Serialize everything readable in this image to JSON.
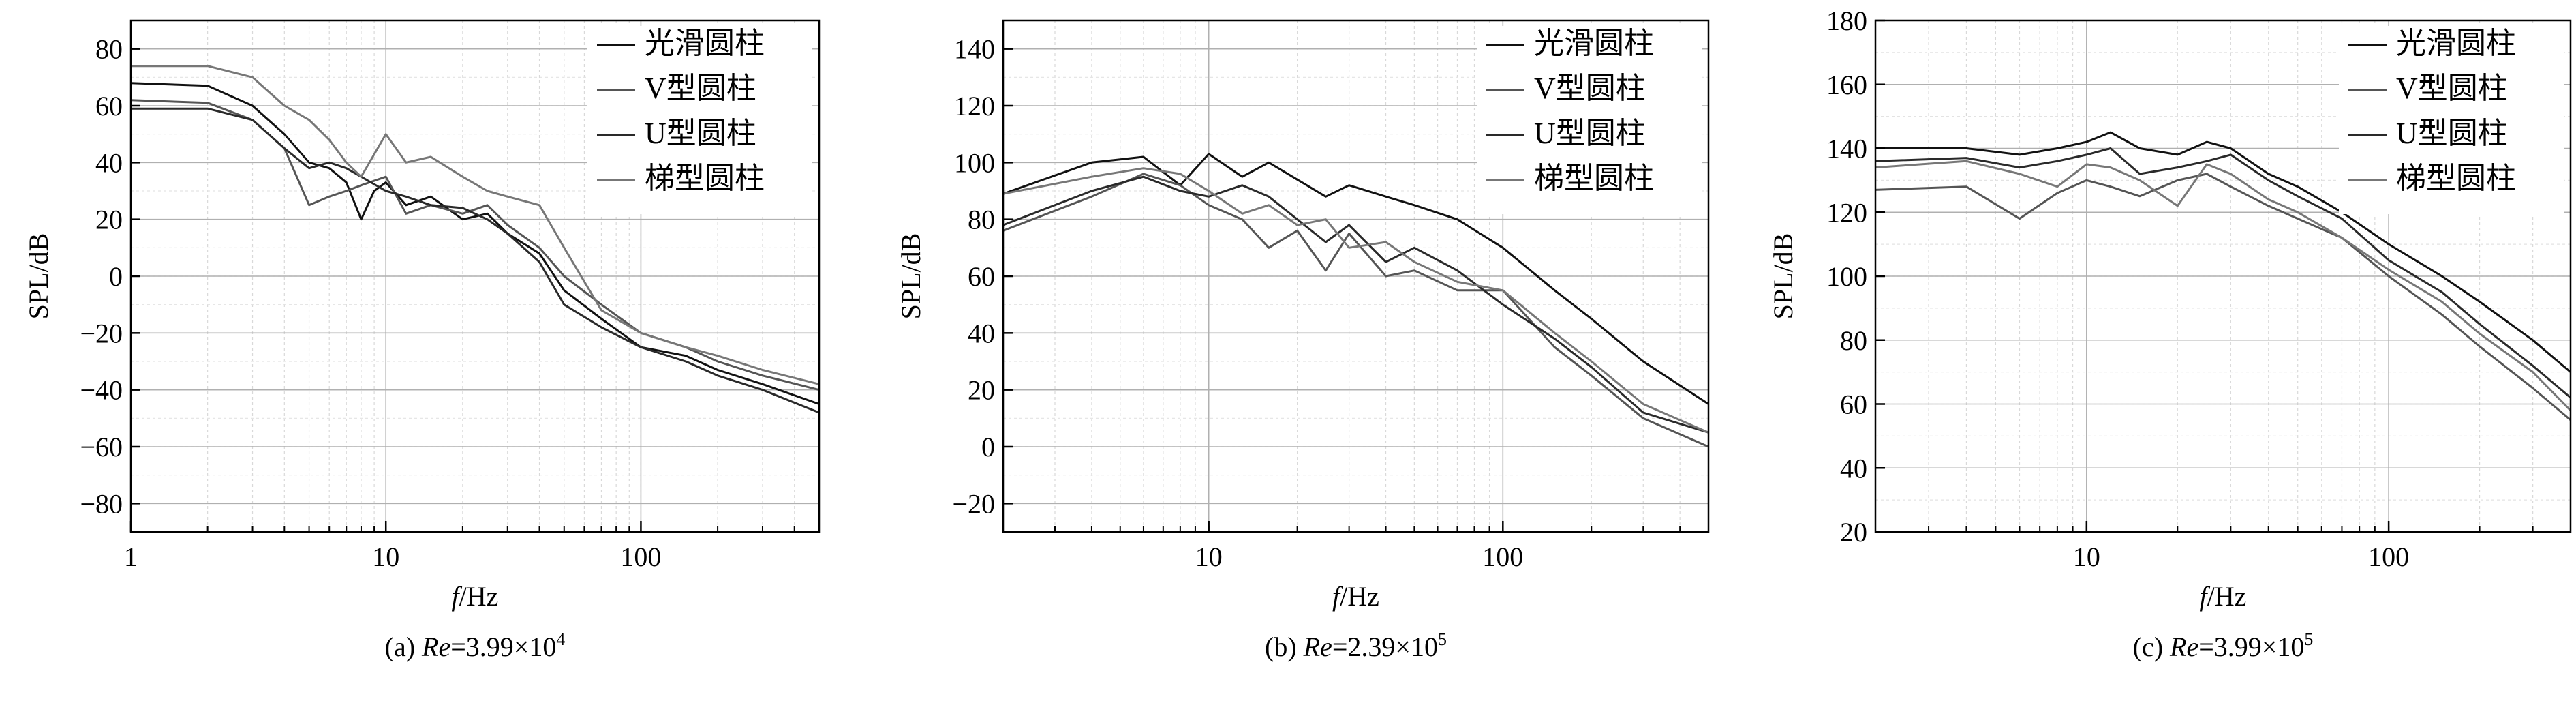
{
  "chart_data": [
    {
      "type": "line",
      "panel_id": "a",
      "caption": {
        "prefix": "(a) ",
        "re_symbol": "Re",
        "equals": "=3.99×10",
        "exponent": "4"
      },
      "xlabel": {
        "italic": "f",
        "rest": "/Hz"
      },
      "ylabel": "SPL/dB",
      "xscale": "log",
      "xlim": [
        1,
        500
      ],
      "ylim": [
        -90,
        90
      ],
      "y_ticks": [
        -80,
        -60,
        -40,
        -20,
        0,
        20,
        40,
        60,
        80
      ],
      "x_ticks": [
        1,
        10,
        100
      ],
      "x_tick_labels": [
        "1",
        "10",
        "100"
      ],
      "grid": true,
      "legend_position": "upper-right",
      "series": [
        {
          "name": "光滑圆柱",
          "color": "#111111",
          "values": [
            [
              1,
              68
            ],
            [
              2,
              67
            ],
            [
              3,
              60
            ],
            [
              4,
              50
            ],
            [
              5,
              40
            ],
            [
              6,
              38
            ],
            [
              7,
              33
            ],
            [
              8,
              20
            ],
            [
              9,
              30
            ],
            [
              10,
              33
            ],
            [
              12,
              25
            ],
            [
              15,
              28
            ],
            [
              20,
              20
            ],
            [
              25,
              22
            ],
            [
              30,
              15
            ],
            [
              40,
              8
            ],
            [
              50,
              -5
            ],
            [
              70,
              -15
            ],
            [
              100,
              -25
            ],
            [
              150,
              -28
            ],
            [
              200,
              -33
            ],
            [
              300,
              -38
            ],
            [
              500,
              -45
            ]
          ]
        },
        {
          "name": "V型圆柱",
          "color": "#555555",
          "values": [
            [
              1,
              62
            ],
            [
              2,
              61
            ],
            [
              3,
              55
            ],
            [
              4,
              45
            ],
            [
              5,
              25
            ],
            [
              6,
              28
            ],
            [
              7,
              30
            ],
            [
              8,
              32
            ],
            [
              10,
              35
            ],
            [
              12,
              22
            ],
            [
              15,
              25
            ],
            [
              20,
              22
            ],
            [
              25,
              25
            ],
            [
              30,
              18
            ],
            [
              40,
              10
            ],
            [
              50,
              0
            ],
            [
              70,
              -10
            ],
            [
              100,
              -20
            ],
            [
              150,
              -25
            ],
            [
              200,
              -30
            ],
            [
              300,
              -35
            ],
            [
              500,
              -40
            ]
          ]
        },
        {
          "name": "U型圆柱",
          "color": "#2a2a2a",
          "values": [
            [
              1,
              59
            ],
            [
              2,
              59
            ],
            [
              3,
              55
            ],
            [
              4,
              45
            ],
            [
              5,
              38
            ],
            [
              6,
              40
            ],
            [
              7,
              38
            ],
            [
              8,
              35
            ],
            [
              10,
              30
            ],
            [
              12,
              28
            ],
            [
              15,
              25
            ],
            [
              20,
              24
            ],
            [
              25,
              20
            ],
            [
              30,
              15
            ],
            [
              40,
              5
            ],
            [
              50,
              -10
            ],
            [
              70,
              -18
            ],
            [
              100,
              -25
            ],
            [
              150,
              -30
            ],
            [
              200,
              -35
            ],
            [
              300,
              -40
            ],
            [
              500,
              -48
            ]
          ]
        },
        {
          "name": "梯型圆柱",
          "color": "#777777",
          "values": [
            [
              1,
              74
            ],
            [
              2,
              74
            ],
            [
              3,
              70
            ],
            [
              4,
              60
            ],
            [
              5,
              55
            ],
            [
              6,
              48
            ],
            [
              7,
              40
            ],
            [
              8,
              35
            ],
            [
              10,
              50
            ],
            [
              12,
              40
            ],
            [
              15,
              42
            ],
            [
              20,
              35
            ],
            [
              25,
              30
            ],
            [
              30,
              28
            ],
            [
              40,
              25
            ],
            [
              50,
              10
            ],
            [
              70,
              -12
            ],
            [
              100,
              -20
            ],
            [
              150,
              -25
            ],
            [
              200,
              -28
            ],
            [
              300,
              -33
            ],
            [
              500,
              -38
            ]
          ]
        }
      ]
    },
    {
      "type": "line",
      "panel_id": "b",
      "caption": {
        "prefix": "(b) ",
        "re_symbol": "Re",
        "equals": "=2.39×10",
        "exponent": "5"
      },
      "xlabel": {
        "italic": "f",
        "rest": "/Hz"
      },
      "ylabel": "SPL/dB",
      "xscale": "log",
      "xlim": [
        2,
        500
      ],
      "ylim": [
        -30,
        150
      ],
      "y_ticks": [
        -20,
        0,
        20,
        40,
        60,
        80,
        100,
        120,
        140
      ],
      "x_ticks": [
        10,
        100
      ],
      "x_tick_labels": [
        "10",
        "100"
      ],
      "grid": true,
      "legend_position": "upper-right",
      "series": [
        {
          "name": "光滑圆柱",
          "color": "#111111",
          "values": [
            [
              2,
              89
            ],
            [
              4,
              100
            ],
            [
              6,
              102
            ],
            [
              8,
              92
            ],
            [
              10,
              103
            ],
            [
              13,
              95
            ],
            [
              16,
              100
            ],
            [
              20,
              94
            ],
            [
              25,
              88
            ],
            [
              30,
              92
            ],
            [
              40,
              88
            ],
            [
              50,
              85
            ],
            [
              70,
              80
            ],
            [
              100,
              70
            ],
            [
              150,
              55
            ],
            [
              200,
              45
            ],
            [
              300,
              30
            ],
            [
              500,
              15
            ]
          ]
        },
        {
          "name": "V型圆柱",
          "color": "#555555",
          "values": [
            [
              2,
              76
            ],
            [
              4,
              88
            ],
            [
              6,
              96
            ],
            [
              8,
              92
            ],
            [
              10,
              85
            ],
            [
              13,
              80
            ],
            [
              16,
              70
            ],
            [
              20,
              76
            ],
            [
              25,
              62
            ],
            [
              30,
              75
            ],
            [
              40,
              60
            ],
            [
              50,
              62
            ],
            [
              70,
              55
            ],
            [
              100,
              55
            ],
            [
              150,
              35
            ],
            [
              200,
              25
            ],
            [
              300,
              10
            ],
            [
              500,
              0
            ]
          ]
        },
        {
          "name": "U型圆柱",
          "color": "#2a2a2a",
          "values": [
            [
              2,
              78
            ],
            [
              4,
              90
            ],
            [
              6,
              95
            ],
            [
              8,
              90
            ],
            [
              10,
              88
            ],
            [
              13,
              92
            ],
            [
              16,
              88
            ],
            [
              20,
              80
            ],
            [
              25,
              72
            ],
            [
              30,
              78
            ],
            [
              40,
              65
            ],
            [
              50,
              70
            ],
            [
              70,
              62
            ],
            [
              100,
              50
            ],
            [
              150,
              38
            ],
            [
              200,
              28
            ],
            [
              300,
              12
            ],
            [
              500,
              5
            ]
          ]
        },
        {
          "name": "梯型圆柱",
          "color": "#777777",
          "values": [
            [
              2,
              89
            ],
            [
              4,
              95
            ],
            [
              6,
              98
            ],
            [
              8,
              96
            ],
            [
              10,
              90
            ],
            [
              13,
              82
            ],
            [
              16,
              85
            ],
            [
              20,
              78
            ],
            [
              25,
              80
            ],
            [
              30,
              70
            ],
            [
              40,
              72
            ],
            [
              50,
              65
            ],
            [
              70,
              58
            ],
            [
              100,
              55
            ],
            [
              150,
              40
            ],
            [
              200,
              30
            ],
            [
              300,
              15
            ],
            [
              500,
              5
            ]
          ]
        }
      ]
    },
    {
      "type": "line",
      "panel_id": "c",
      "caption": {
        "prefix": "(c) ",
        "re_symbol": "Re",
        "equals": "=3.99×10",
        "exponent": "5"
      },
      "xlabel": {
        "italic": "f",
        "rest": "/Hz"
      },
      "ylabel": "SPL/dB",
      "xscale": "log",
      "xlim": [
        2,
        400
      ],
      "ylim": [
        20,
        180
      ],
      "y_ticks": [
        20,
        40,
        60,
        80,
        100,
        120,
        140,
        160,
        180
      ],
      "x_ticks": [
        10,
        100
      ],
      "x_tick_labels": [
        "10",
        "100"
      ],
      "grid": true,
      "legend_position": "upper-right",
      "series": [
        {
          "name": "光滑圆柱",
          "color": "#111111",
          "values": [
            [
              2,
              140
            ],
            [
              4,
              140
            ],
            [
              6,
              138
            ],
            [
              8,
              140
            ],
            [
              10,
              142
            ],
            [
              12,
              145
            ],
            [
              15,
              140
            ],
            [
              20,
              138
            ],
            [
              25,
              142
            ],
            [
              30,
              140
            ],
            [
              40,
              132
            ],
            [
              50,
              128
            ],
            [
              70,
              120
            ],
            [
              100,
              110
            ],
            [
              150,
              100
            ],
            [
              200,
              92
            ],
            [
              300,
              80
            ],
            [
              400,
              70
            ]
          ]
        },
        {
          "name": "V型圆柱",
          "color": "#555555",
          "values": [
            [
              2,
              127
            ],
            [
              4,
              128
            ],
            [
              6,
              118
            ],
            [
              8,
              126
            ],
            [
              10,
              130
            ],
            [
              12,
              128
            ],
            [
              15,
              125
            ],
            [
              20,
              130
            ],
            [
              25,
              132
            ],
            [
              30,
              128
            ],
            [
              40,
              122
            ],
            [
              50,
              118
            ],
            [
              70,
              112
            ],
            [
              100,
              100
            ],
            [
              150,
              88
            ],
            [
              200,
              78
            ],
            [
              300,
              65
            ],
            [
              400,
              55
            ]
          ]
        },
        {
          "name": "U型圆柱",
          "color": "#2a2a2a",
          "values": [
            [
              2,
              136
            ],
            [
              4,
              137
            ],
            [
              6,
              134
            ],
            [
              8,
              136
            ],
            [
              10,
              138
            ],
            [
              12,
              140
            ],
            [
              15,
              132
            ],
            [
              20,
              134
            ],
            [
              25,
              136
            ],
            [
              30,
              138
            ],
            [
              40,
              130
            ],
            [
              50,
              125
            ],
            [
              70,
              118
            ],
            [
              100,
              105
            ],
            [
              150,
              95
            ],
            [
              200,
              85
            ],
            [
              300,
              72
            ],
            [
              400,
              62
            ]
          ]
        },
        {
          "name": "梯型圆柱",
          "color": "#777777",
          "values": [
            [
              2,
              134
            ],
            [
              4,
              136
            ],
            [
              6,
              132
            ],
            [
              8,
              128
            ],
            [
              10,
              135
            ],
            [
              12,
              134
            ],
            [
              15,
              130
            ],
            [
              20,
              122
            ],
            [
              25,
              135
            ],
            [
              30,
              132
            ],
            [
              40,
              124
            ],
            [
              50,
              120
            ],
            [
              70,
              112
            ],
            [
              100,
              102
            ],
            [
              150,
              92
            ],
            [
              200,
              82
            ],
            [
              300,
              70
            ],
            [
              400,
              58
            ]
          ]
        }
      ]
    }
  ]
}
